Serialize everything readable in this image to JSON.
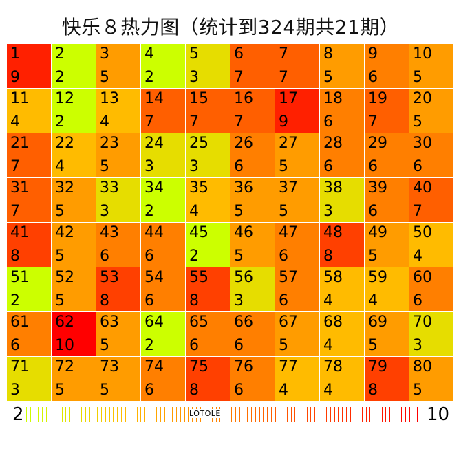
{
  "chart_data": {
    "type": "heatmap",
    "title": "快乐８热力图（统计到324期共21期）",
    "columns": 10,
    "numbers": [
      1,
      2,
      3,
      4,
      5,
      6,
      7,
      8,
      9,
      10,
      11,
      12,
      13,
      14,
      15,
      16,
      17,
      18,
      19,
      20,
      21,
      22,
      23,
      24,
      25,
      26,
      27,
      28,
      29,
      30,
      31,
      32,
      33,
      34,
      35,
      36,
      37,
      38,
      39,
      40,
      41,
      42,
      43,
      44,
      45,
      46,
      47,
      48,
      49,
      50,
      51,
      52,
      53,
      54,
      55,
      56,
      57,
      58,
      59,
      60,
      61,
      62,
      63,
      64,
      65,
      66,
      67,
      68,
      69,
      70,
      71,
      72,
      73,
      74,
      75,
      76,
      77,
      78,
      79,
      80
    ],
    "values": [
      9,
      2,
      5,
      2,
      3,
      7,
      7,
      5,
      6,
      5,
      4,
      2,
      4,
      7,
      7,
      7,
      9,
      6,
      7,
      5,
      7,
      4,
      5,
      3,
      3,
      6,
      5,
      6,
      6,
      6,
      7,
      5,
      3,
      2,
      4,
      5,
      5,
      3,
      6,
      7,
      8,
      5,
      6,
      6,
      2,
      5,
      6,
      8,
      5,
      4,
      2,
      5,
      8,
      6,
      8,
      3,
      6,
      4,
      4,
      6,
      6,
      10,
      5,
      2,
      6,
      6,
      5,
      4,
      5,
      3,
      3,
      5,
      5,
      6,
      8,
      6,
      4,
      4,
      8,
      5
    ],
    "color_scale": {
      "2": "#ccff00",
      "3": "#e6dd00",
      "4": "#ffbb00",
      "5": "#ff9c00",
      "6": "#ff7f00",
      "7": "#ff5f00",
      "8": "#ff4000",
      "9": "#ff2000",
      "10": "#ff0000"
    },
    "legend": {
      "min_label": "2",
      "max_label": "10",
      "watermark": "LOTOLE"
    }
  }
}
